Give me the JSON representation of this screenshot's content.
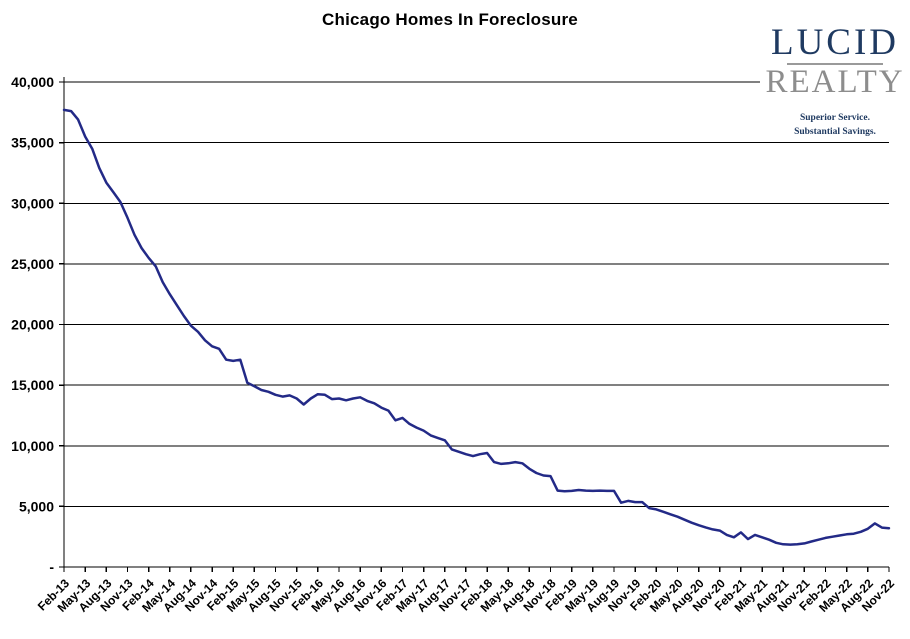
{
  "title": "Chicago Homes In Foreclosure",
  "logo": {
    "line1": "LUCID",
    "line2": "REALTY",
    "tagline1": "Superior Service.",
    "tagline2": "Substantial Savings.",
    "color_primary": "#1F3A61",
    "color_secondary": "#8D8D8D",
    "rule_color": "#9A9A9A"
  },
  "chart_data": {
    "type": "line",
    "title": "Chicago Homes In Foreclosure",
    "xlabel": "",
    "ylabel": "",
    "ylim": [
      0,
      40000
    ],
    "ytick_step": 5000,
    "zero_label": "-",
    "x_tick_every": 3,
    "grid": true,
    "legend": "none",
    "line_color": "#232A87",
    "x": [
      "Feb-13",
      "Mar-13",
      "Apr-13",
      "May-13",
      "Jun-13",
      "Jul-13",
      "Aug-13",
      "Sep-13",
      "Oct-13",
      "Nov-13",
      "Dec-13",
      "Jan-14",
      "Feb-14",
      "Mar-14",
      "Apr-14",
      "May-14",
      "Jun-14",
      "Jul-14",
      "Aug-14",
      "Sep-14",
      "Oct-14",
      "Nov-14",
      "Dec-14",
      "Jan-15",
      "Feb-15",
      "Mar-15",
      "Apr-15",
      "May-15",
      "Jun-15",
      "Jul-15",
      "Aug-15",
      "Sep-15",
      "Oct-15",
      "Nov-15",
      "Dec-15",
      "Jan-16",
      "Feb-16",
      "Mar-16",
      "Apr-16",
      "May-16",
      "Jun-16",
      "Jul-16",
      "Aug-16",
      "Sep-16",
      "Oct-16",
      "Nov-16",
      "Dec-16",
      "Jan-17",
      "Feb-17",
      "Mar-17",
      "Apr-17",
      "May-17",
      "Jun-17",
      "Jul-17",
      "Aug-17",
      "Sep-17",
      "Oct-17",
      "Nov-17",
      "Dec-17",
      "Jan-18",
      "Feb-18",
      "Mar-18",
      "Apr-18",
      "May-18",
      "Jun-18",
      "Jul-18",
      "Aug-18",
      "Sep-18",
      "Oct-18",
      "Nov-18",
      "Dec-18",
      "Jan-19",
      "Feb-19",
      "Mar-19",
      "Apr-19",
      "May-19",
      "Jun-19",
      "Jul-19",
      "Aug-19",
      "Sep-19",
      "Oct-19",
      "Nov-19",
      "Dec-19",
      "Jan-20",
      "Feb-20",
      "Mar-20",
      "Apr-20",
      "May-20",
      "Jun-20",
      "Jul-20",
      "Aug-20",
      "Sep-20",
      "Oct-20",
      "Nov-20",
      "Dec-20",
      "Jan-21",
      "Feb-21",
      "Mar-21",
      "Apr-21",
      "May-21",
      "Jun-21",
      "Jul-21",
      "Aug-21",
      "Sep-21",
      "Oct-21",
      "Nov-21",
      "Dec-21",
      "Jan-22",
      "Feb-22",
      "Mar-22",
      "Apr-22",
      "May-22",
      "Jun-22",
      "Jul-22",
      "Aug-22",
      "Sep-22",
      "Oct-22",
      "Nov-22"
    ],
    "values": [
      37700,
      37600,
      36900,
      35500,
      34500,
      32900,
      31700,
      30900,
      30100,
      28800,
      27400,
      26300,
      25500,
      24800,
      23500,
      22500,
      21600,
      20700,
      19900,
      19400,
      18700,
      18200,
      18000,
      17100,
      17000,
      17100,
      15200,
      14900,
      14600,
      14450,
      14200,
      14050,
      14150,
      13900,
      13400,
      13900,
      14250,
      14200,
      13850,
      13900,
      13750,
      13900,
      14000,
      13700,
      13500,
      13150,
      12900,
      12100,
      12300,
      11800,
      11500,
      11250,
      10850,
      10650,
      10450,
      9700,
      9500,
      9300,
      9150,
      9300,
      9400,
      8650,
      8500,
      8550,
      8650,
      8550,
      8100,
      7750,
      7550,
      7500,
      6300,
      6250,
      6280,
      6350,
      6300,
      6280,
      6300,
      6280,
      6280,
      5300,
      5450,
      5350,
      5350,
      4850,
      4750,
      4550,
      4350,
      4150,
      3900,
      3650,
      3450,
      3270,
      3100,
      3000,
      2650,
      2450,
      2850,
      2300,
      2650,
      2450,
      2250,
      2000,
      1870,
      1850,
      1870,
      1950,
      2100,
      2250,
      2400,
      2500,
      2600,
      2700,
      2750,
      2900,
      3150,
      3600,
      3250,
      3200
    ]
  }
}
